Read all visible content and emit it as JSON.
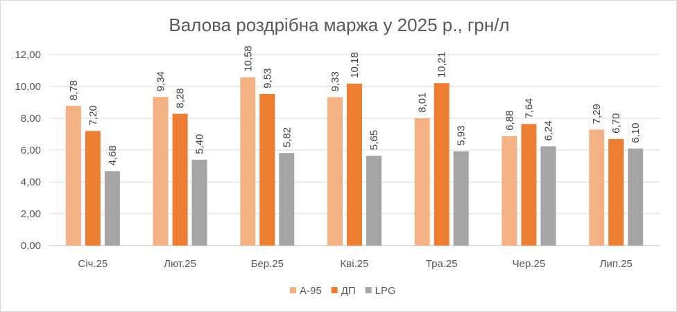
{
  "chart_data": {
    "type": "bar",
    "title": "Валова роздрібна маржа у 2025 р., грн/л",
    "xlabel": "",
    "ylabel": "",
    "ylim": [
      0,
      12
    ],
    "yticks": [
      "0,00",
      "2,00",
      "4,00",
      "6,00",
      "8,00",
      "10,00",
      "12,00"
    ],
    "grid": true,
    "legend_position": "bottom",
    "categories": [
      "Січ.25",
      "Лют.25",
      "Бер.25",
      "Кві.25",
      "Тра.25",
      "Чер.25",
      "Лип.25"
    ],
    "series": [
      {
        "name": "А-95",
        "color": "#F4B183",
        "values": [
          8.78,
          9.34,
          10.58,
          9.33,
          8.01,
          6.88,
          7.29
        ],
        "labels": [
          "8,78",
          "9,34",
          "10,58",
          "9,33",
          "8,01",
          "6,88",
          "7,29"
        ]
      },
      {
        "name": "ДП",
        "color": "#ED7D31",
        "values": [
          7.2,
          8.28,
          9.53,
          10.18,
          10.21,
          7.64,
          6.7
        ],
        "labels": [
          "7,20",
          "8,28",
          "9,53",
          "10,18",
          "10,21",
          "7,64",
          "6,70"
        ]
      },
      {
        "name": "LPG",
        "color": "#A5A5A5",
        "values": [
          4.68,
          5.4,
          5.82,
          5.65,
          5.93,
          6.24,
          6.1
        ],
        "labels": [
          "4,68",
          "5,40",
          "5,82",
          "5,65",
          "5,93",
          "6,24",
          "6,10"
        ]
      }
    ]
  }
}
